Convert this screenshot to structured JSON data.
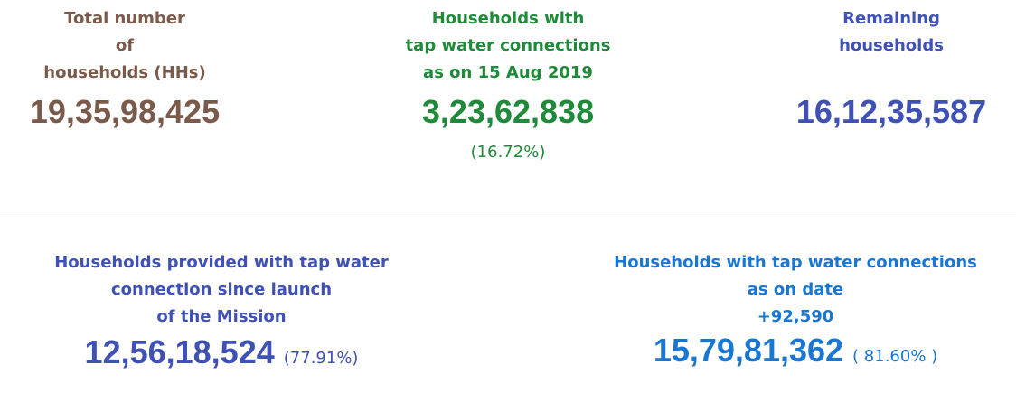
{
  "total": {
    "label_lines": [
      "Total number",
      "of",
      "households (HHs)"
    ],
    "value": "19,35,98,425"
  },
  "tap_2019": {
    "label_lines": [
      "Households with",
      "tap water connections",
      "as on 15 Aug 2019"
    ],
    "value": "3,23,62,838",
    "percent": "(16.72%)"
  },
  "remaining": {
    "label_lines": [
      "Remaining",
      "households"
    ],
    "value": "16,12,35,587"
  },
  "since_launch": {
    "label_lines": [
      "Households provided with tap water",
      "connection since launch",
      "of the Mission"
    ],
    "value": "12,56,18,524",
    "percent": "(77.91%)"
  },
  "as_on_date": {
    "label_lines": [
      "Households with tap water connections",
      "as on date"
    ],
    "increment": "+92,590",
    "value": "15,79,81,362",
    "percent": "( 81.60% )"
  },
  "colors": {
    "total": "#7a5a4a",
    "tap_2019": "#1f8a3a",
    "remaining": "#3f51b5",
    "since_launch": "#3f51b5",
    "as_on_date": "#1976d2"
  }
}
